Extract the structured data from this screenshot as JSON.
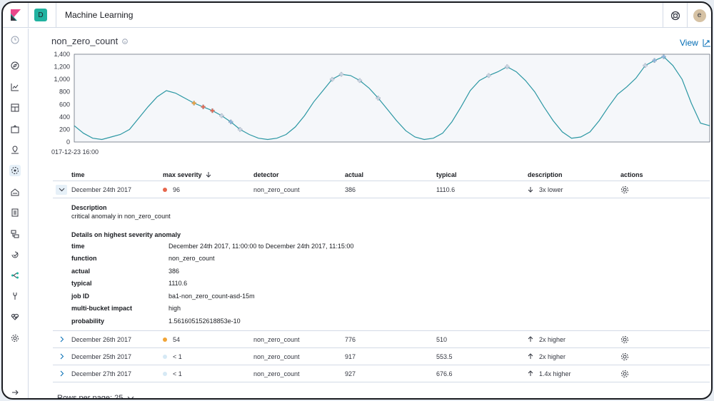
{
  "header": {
    "space_initial": "D",
    "app_title": "Machine Learning",
    "user_initial": "e"
  },
  "chart": {
    "title": "non_zero_count",
    "view_label": "View",
    "x_start_label": "017-12-23 16:00",
    "y_ticks": [
      "1,400",
      "1,200",
      "1,000",
      "800",
      "600",
      "400",
      "200",
      "0"
    ],
    "ylim": [
      0,
      1400
    ],
    "line_color": "#2b97a3"
  },
  "chart_data": {
    "type": "line",
    "x_label_shown": "017-12-23 16:00",
    "ylim": [
      0,
      1400
    ],
    "y_ticks": [
      0,
      200,
      400,
      600,
      800,
      1000,
      1200,
      1400
    ],
    "series": [
      {
        "values": [
          260,
          140,
          60,
          40,
          80,
          120,
          200,
          380,
          560,
          720,
          820,
          780,
          700,
          620,
          560,
          500,
          420,
          320,
          200,
          120,
          60,
          40,
          60,
          120,
          240,
          420,
          640,
          820,
          1000,
          1080,
          1060,
          980,
          860,
          700,
          520,
          340,
          180,
          80,
          40,
          60,
          140,
          320,
          560,
          820,
          980,
          1060,
          1120,
          1200,
          1120,
          980,
          800,
          560,
          340,
          160,
          60,
          80,
          160,
          340,
          560,
          760,
          880,
          1020,
          1220,
          1300,
          1360,
          1220,
          1000,
          620,
          300,
          260
        ]
      }
    ]
  },
  "table": {
    "headers": {
      "time": "time",
      "max_severity": "max severity",
      "detector": "detector",
      "actual": "actual",
      "typical": "typical",
      "description": "description",
      "actions": "actions"
    },
    "expanded_row": {
      "time": "December 24th 2017",
      "severity": "96",
      "severity_color": "#e7664c",
      "detector": "non_zero_count",
      "actual": "386",
      "typical": "1110.6",
      "description": "3x lower"
    },
    "details": {
      "description_title": "Description",
      "description_text": "critical anomaly in non_zero_count",
      "details_title": "Details on highest severity anomaly",
      "fields": [
        {
          "key": "time",
          "value": "December 24th 2017, 11:00:00 to December 24th 2017, 11:15:00"
        },
        {
          "key": "function",
          "value": "non_zero_count"
        },
        {
          "key": "actual",
          "value": "386"
        },
        {
          "key": "typical",
          "value": "1110.6"
        },
        {
          "key": "job ID",
          "value": "ba1-non_zero_count-asd-15m"
        },
        {
          "key": "multi-bucket impact",
          "value": "high"
        },
        {
          "key": "probability",
          "value": "1.561605152618853e-10"
        }
      ]
    },
    "rows": [
      {
        "time": "December 26th 2017",
        "severity": "54",
        "severity_color": "#f1a437",
        "detector": "non_zero_count",
        "actual": "776",
        "typical": "510",
        "description": "2x higher"
      },
      {
        "time": "December 25th 2017",
        "severity": "< 1",
        "severity_color": "#d6e9f5",
        "detector": "non_zero_count",
        "actual": "917",
        "typical": "553.5",
        "description": "2x higher"
      },
      {
        "time": "December 27th 2017",
        "severity": "< 1",
        "severity_color": "#d6e9f5",
        "detector": "non_zero_count",
        "actual": "927",
        "typical": "676.6",
        "description": "1.4x higher"
      }
    ],
    "rows_per_page_label": "Rows per page: 25"
  }
}
